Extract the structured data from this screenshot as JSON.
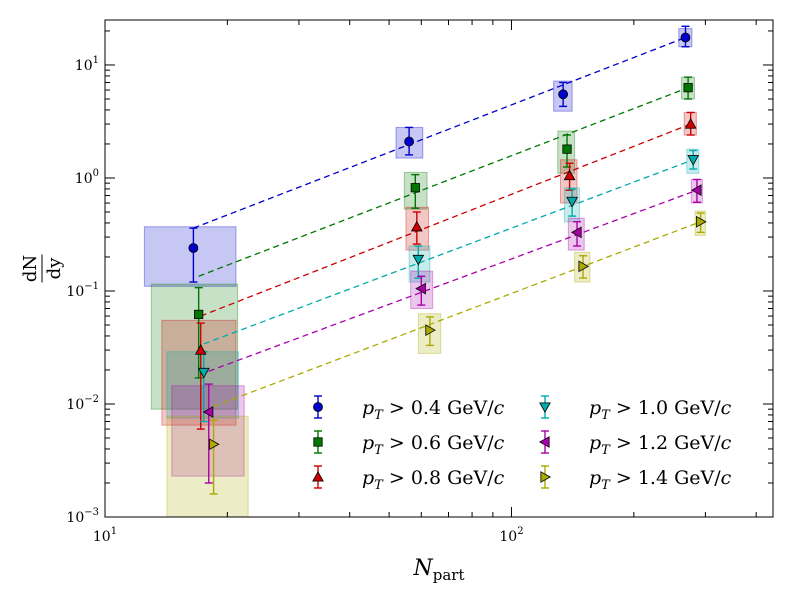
{
  "chart_data": {
    "type": "scatter",
    "xscale": "log",
    "yscale": "log",
    "xlim": [
      10,
      440
    ],
    "ylim": [
      0.001,
      25
    ],
    "xlabel": {
      "main": "N",
      "sub": "part"
    },
    "ylabel": {
      "num": "dN",
      "den": "dy"
    },
    "xticks": [
      {
        "value": 10,
        "base": "10",
        "exp": "1"
      },
      {
        "value": 100,
        "base": "10",
        "exp": "2"
      }
    ],
    "yticks": [
      {
        "value": 0.001,
        "base": "10",
        "exp": "−3"
      },
      {
        "value": 0.01,
        "base": "10",
        "exp": "−2"
      },
      {
        "value": 0.1,
        "base": "10",
        "exp": "−1"
      },
      {
        "value": 1,
        "base": "10",
        "exp": "0"
      },
      {
        "value": 10,
        "base": "10",
        "exp": "1"
      }
    ],
    "legend_position": "lower-right",
    "series": [
      {
        "name": "p_T > 0.4 GeV/c",
        "label_value": "0.4",
        "color": "#0000cc",
        "marker": "circle",
        "points": [
          {
            "x": 16.5,
            "y": 0.24,
            "err_lo": 0.12,
            "err_hi": 0.12,
            "box_x": [
              12.5,
              21.0
            ],
            "box_y": [
              0.11,
              0.37
            ]
          },
          {
            "x": 56.0,
            "y": 2.1,
            "err_lo": 0.5,
            "err_hi": 0.7,
            "box_x": [
              52.0,
              60.5
            ],
            "box_y": [
              1.5,
              2.8
            ]
          },
          {
            "x": 134.0,
            "y": 5.5,
            "err_lo": 1.2,
            "err_hi": 1.5,
            "box_x": [
              127.0,
              141.0
            ],
            "box_y": [
              3.9,
              7.2
            ]
          },
          {
            "x": 268.0,
            "y": 17.5,
            "err_lo": 3.0,
            "err_hi": 4.5,
            "box_x": [
              258.0,
              278.0
            ],
            "box_y": [
              14.5,
              21.0
            ]
          }
        ],
        "fit": {
          "x": [
            16.5,
            268.0
          ],
          "y": [
            0.36,
            17.5
          ]
        }
      },
      {
        "name": "p_T > 0.6 GeV/c",
        "label_value": "0.6",
        "color": "#007700",
        "marker": "square",
        "points": [
          {
            "x": 17.0,
            "y": 0.062,
            "err_lo": 0.045,
            "err_hi": 0.045,
            "box_x": [
              13.0,
              21.2
            ],
            "box_y": [
              0.009,
              0.115
            ]
          },
          {
            "x": 58.0,
            "y": 0.82,
            "err_lo": 0.28,
            "err_hi": 0.25,
            "box_x": [
              54.5,
              62.0
            ],
            "box_y": [
              0.53,
              1.12
            ]
          },
          {
            "x": 137.0,
            "y": 1.8,
            "err_lo": 0.55,
            "err_hi": 0.6,
            "box_x": [
              130.0,
              143.0
            ],
            "box_y": [
              1.1,
              2.6
            ]
          },
          {
            "x": 272.0,
            "y": 6.3,
            "err_lo": 1.3,
            "err_hi": 1.5,
            "box_x": [
              262.0,
              282.0
            ],
            "box_y": [
              5.0,
              7.8
            ]
          }
        ],
        "fit": {
          "x": [
            17.0,
            272.0
          ],
          "y": [
            0.135,
            6.3
          ]
        }
      },
      {
        "name": "p_T > 0.8 GeV/c",
        "label_value": "0.8",
        "color": "#cc0000",
        "marker": "triangle-up",
        "points": [
          {
            "x": 17.2,
            "y": 0.03,
            "err_lo": 0.024,
            "err_hi": 0.022,
            "box_x": [
              13.8,
              21.0
            ],
            "box_y": [
              0.0065,
              0.055
            ]
          },
          {
            "x": 58.5,
            "y": 0.37,
            "err_lo": 0.11,
            "err_hi": 0.13,
            "box_x": [
              55.0,
              62.5
            ],
            "box_y": [
              0.23,
              0.55
            ]
          },
          {
            "x": 139.0,
            "y": 1.05,
            "err_lo": 0.27,
            "err_hi": 0.3,
            "box_x": [
              132.0,
              145.0
            ],
            "box_y": [
              0.6,
              1.45
            ]
          },
          {
            "x": 276.0,
            "y": 3.0,
            "err_lo": 0.6,
            "err_hi": 0.8,
            "box_x": [
              266.0,
              285.0
            ],
            "box_y": [
              2.4,
              3.8
            ]
          }
        ],
        "fit": {
          "x": [
            17.2,
            276.0
          ],
          "y": [
            0.06,
            3.0
          ]
        }
      },
      {
        "name": "p_T > 1.0 GeV/c",
        "label_value": "1.0",
        "color": "#00aaaa",
        "marker": "triangle-down",
        "points": [
          {
            "x": 17.5,
            "y": 0.019,
            "err_lo": 0.012,
            "err_hi": 0.01,
            "box_x": [
              14.2,
              21.3
            ],
            "box_y": [
              0.0075,
              0.029
            ]
          },
          {
            "x": 59.0,
            "y": 0.19,
            "err_lo": 0.06,
            "err_hi": 0.06,
            "box_x": [
              56.0,
              63.0
            ],
            "box_y": [
              0.12,
              0.25
            ]
          },
          {
            "x": 141.0,
            "y": 0.62,
            "err_lo": 0.16,
            "err_hi": 0.18,
            "box_x": [
              135.0,
              147.0
            ],
            "box_y": [
              0.41,
              0.82
            ]
          },
          {
            "x": 280.0,
            "y": 1.45,
            "err_lo": 0.25,
            "err_hi": 0.3,
            "box_x": [
              270.0,
              289.0
            ],
            "box_y": [
              1.1,
              1.8
            ]
          }
        ],
        "fit": {
          "x": [
            17.5,
            280.0
          ],
          "y": [
            0.034,
            1.45
          ]
        }
      },
      {
        "name": "p_T > 1.2 GeV/c",
        "label_value": "1.2",
        "color": "#aa00aa",
        "marker": "triangle-left",
        "points": [
          {
            "x": 18.0,
            "y": 0.0085,
            "err_lo": 0.0065,
            "err_hi": 0.0065,
            "box_x": [
              14.6,
              22.0
            ],
            "box_y": [
              0.0023,
              0.0145
            ]
          },
          {
            "x": 60.0,
            "y": 0.105,
            "err_lo": 0.03,
            "err_hi": 0.03,
            "box_x": [
              56.5,
              64.0
            ],
            "box_y": [
              0.07,
              0.15
            ]
          },
          {
            "x": 145.0,
            "y": 0.33,
            "err_lo": 0.08,
            "err_hi": 0.08,
            "box_x": [
              138.0,
              151.0
            ],
            "box_y": [
              0.23,
              0.44
            ]
          },
          {
            "x": 286.0,
            "y": 0.78,
            "err_lo": 0.17,
            "err_hi": 0.19,
            "box_x": [
              277.0,
              295.0
            ],
            "box_y": [
              0.6,
              0.97
            ]
          }
        ],
        "fit": {
          "x": [
            18.0,
            286.0
          ],
          "y": [
            0.0195,
            0.78
          ]
        }
      },
      {
        "name": "p_T > 1.4 GeV/c",
        "label_value": "1.4",
        "color": "#aaaa00",
        "marker": "triangle-right",
        "points": [
          {
            "x": 18.5,
            "y": 0.0044,
            "err_lo": 0.0028,
            "err_hi": 0.0028,
            "box_x": [
              14.2,
              22.5
            ],
            "box_y": [
              0.0009,
              0.0078
            ]
          },
          {
            "x": 63.0,
            "y": 0.045,
            "err_lo": 0.012,
            "err_hi": 0.014,
            "box_x": [
              59.0,
              67.0
            ],
            "box_y": [
              0.028,
              0.063
            ]
          },
          {
            "x": 150.0,
            "y": 0.165,
            "err_lo": 0.035,
            "err_hi": 0.04,
            "box_x": [
              143.0,
              156.0
            ],
            "box_y": [
              0.12,
              0.22
            ]
          },
          {
            "x": 292.0,
            "y": 0.41,
            "err_lo": 0.08,
            "err_hi": 0.08,
            "box_x": [
              283.0,
              300.0
            ],
            "box_y": [
              0.31,
              0.51
            ]
          }
        ],
        "fit": {
          "x": [
            18.5,
            292.0
          ],
          "y": [
            0.0095,
            0.41
          ]
        }
      }
    ]
  },
  "legend": {
    "prefix_var": "p",
    "prefix_sub": "T",
    "op": " > ",
    "unit": " GeV/",
    "unit_c": "c"
  }
}
